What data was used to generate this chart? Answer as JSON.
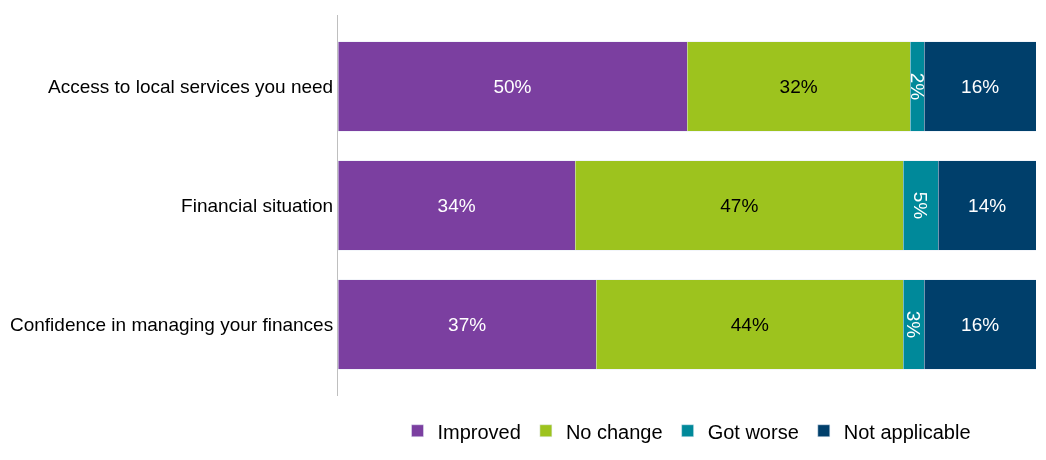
{
  "chart_data": {
    "type": "bar",
    "orientation": "horizontal",
    "stacked": true,
    "legend": "bottom",
    "categories": [
      "Access to local services you need",
      "Financial situation",
      "Confidence in managing your finances"
    ],
    "series": [
      {
        "name": "Improved",
        "color": "#7b3fa0",
        "values": [
          50,
          34,
          37
        ],
        "value_labels": [
          "50%",
          "34%",
          "37%"
        ]
      },
      {
        "name": "No change",
        "color": "#9dc31e",
        "values": [
          32,
          47,
          44
        ],
        "value_labels": [
          "32%",
          "47%",
          "44%"
        ]
      },
      {
        "name": "Got worse",
        "color": "#00899a",
        "values": [
          2,
          5,
          3
        ],
        "value_labels": [
          "2%",
          "5%",
          "3%"
        ]
      },
      {
        "name": "Not applicable",
        "color": "#003f6b",
        "values": [
          16,
          14,
          16
        ],
        "value_labels": [
          "16%",
          "14%",
          "16%"
        ]
      }
    ]
  }
}
